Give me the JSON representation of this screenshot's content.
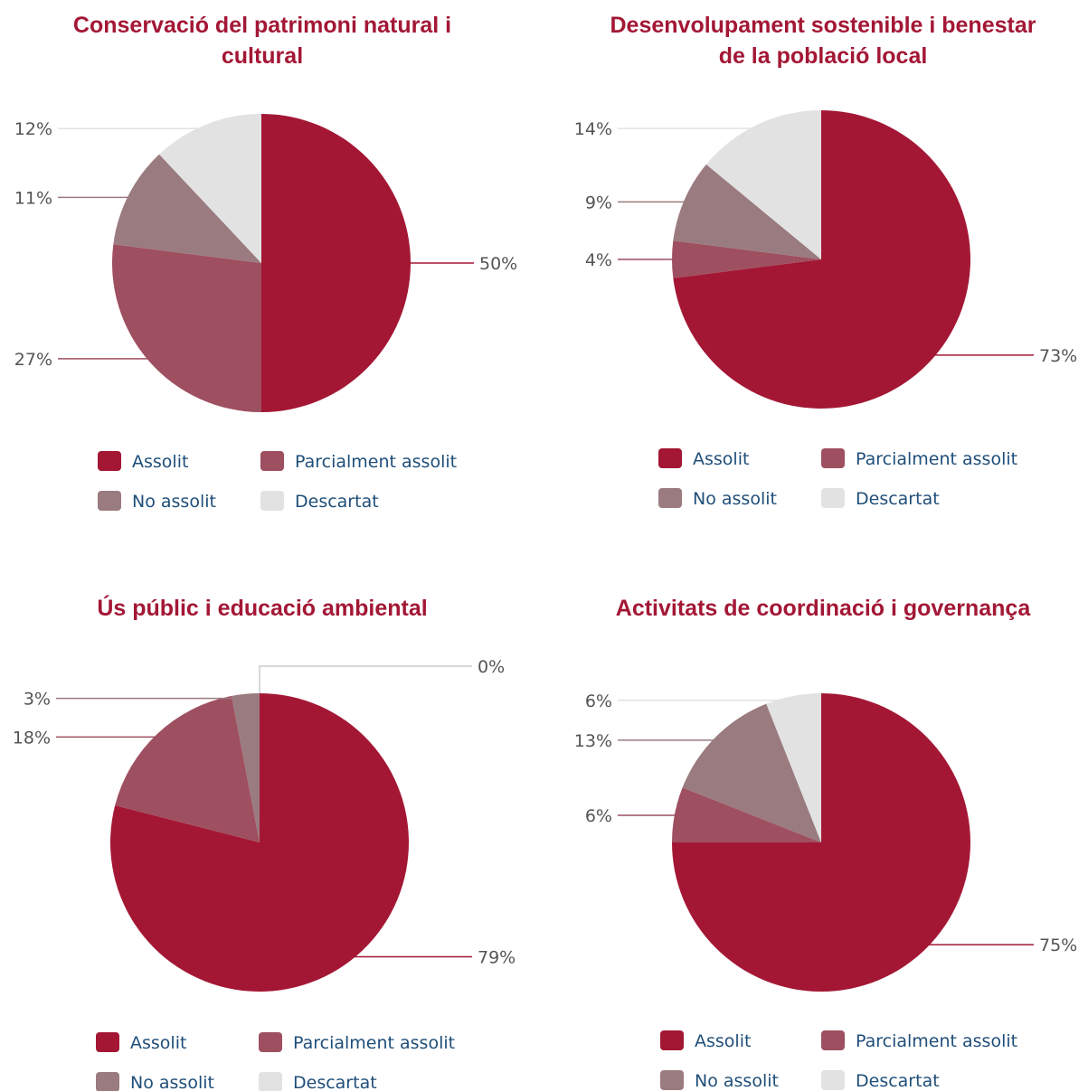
{
  "legend": {
    "labels": [
      "Assolit",
      "Parcialment assolit",
      "No assolit",
      "Descartat"
    ]
  },
  "colors": {
    "Assolit": "#a31735",
    "Parcialment assolit": "#9e4f60",
    "No assolit": "#9a7b7f",
    "Descartat": "#e2e2e2",
    "title": "#a31735",
    "legend_text": "#1f4e79",
    "label_text": "#555555"
  },
  "chart_data": [
    {
      "type": "pie",
      "title": "Conservació del patrimoni natural i cultural",
      "categories": [
        "Assolit",
        "Parcialment assolit",
        "No assolit",
        "Descartat"
      ],
      "values": [
        50,
        27,
        11,
        12
      ],
      "labels": [
        "50%",
        "27%",
        "11%",
        "12%"
      ],
      "legend": "bottom"
    },
    {
      "type": "pie",
      "title": "Desenvolupament sostenible i benestar de la població local",
      "categories": [
        "Assolit",
        "Parcialment assolit",
        "No assolit",
        "Descartat"
      ],
      "values": [
        73,
        4,
        9,
        14
      ],
      "labels": [
        "73%",
        "4%",
        "9%",
        "14%"
      ],
      "legend": "bottom"
    },
    {
      "type": "pie",
      "title": "Ús públic i educació ambiental",
      "categories": [
        "Assolit",
        "Parcialment assolit",
        "No assolit",
        "Descartat"
      ],
      "values": [
        79,
        18,
        3,
        0
      ],
      "labels": [
        "79%",
        "18%",
        "3%",
        "0%"
      ],
      "legend": "bottom"
    },
    {
      "type": "pie",
      "title": "Activitats de coordinació i governança",
      "categories": [
        "Assolit",
        "Parcialment assolit",
        "No assolit",
        "Descartat"
      ],
      "values": [
        75,
        6,
        13,
        6
      ],
      "labels": [
        "75%",
        "6%",
        "13%",
        "6%"
      ],
      "legend": "bottom"
    }
  ]
}
